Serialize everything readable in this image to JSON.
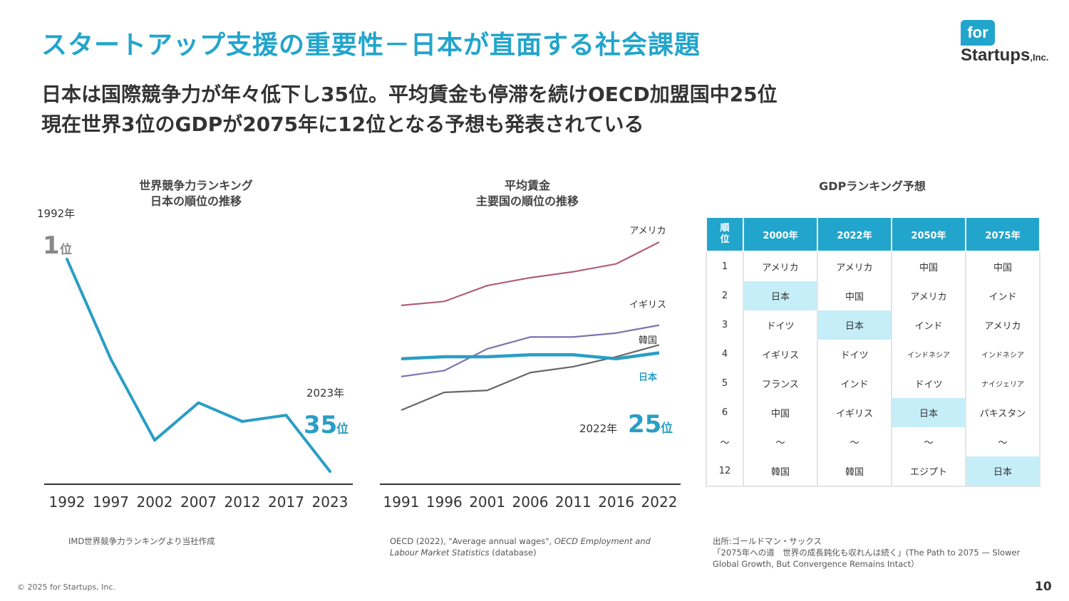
{
  "header": {
    "title": "スタートアップ支援の重要性－日本が直面する社会課題",
    "logo_top": "for",
    "logo_bottom": "Startups",
    "logo_suffix": ",Inc."
  },
  "subtitle": {
    "line1": "日本は国際競争力が年々低下し35位。平均賃金も停滞を続けOECD加盟国中25位",
    "line2": "現在世界3位のGDPが2075年に12位となる予想も発表されている"
  },
  "chart_data": [
    {
      "type": "line",
      "title_line1": "世界競争力ランキング",
      "title_line2": "日本の順位の推移",
      "x": [
        "1992",
        "1997",
        "2002",
        "2007",
        "2012",
        "2017",
        "2023"
      ],
      "series": [
        {
          "name": "",
          "values": [
            1,
            17,
            30,
            24,
            27,
            26,
            35
          ],
          "color": "#2a9ec4"
        }
      ],
      "y_inverted": true,
      "ylim": [
        1,
        35
      ],
      "annotations": {
        "start_year": "1992年",
        "start_rank": "1",
        "end_year": "2023年",
        "end_rank": "35",
        "rank_suffix": "位"
      },
      "grid": false
    },
    {
      "type": "line",
      "title_line1": "平均賃金",
      "title_line2": "主要国の順位の推移",
      "x": [
        "1991",
        "1996",
        "2001",
        "2006",
        "2011",
        "2016",
        "2022"
      ],
      "series": [
        {
          "name": "アメリカ",
          "values": [
            58,
            59,
            63,
            65,
            66.5,
            68.5,
            74
          ],
          "color": "#b05f77"
        },
        {
          "name": "イギリス",
          "values": [
            40,
            41.5,
            47,
            50,
            50,
            51,
            53
          ],
          "color": "#7e73ad"
        },
        {
          "name": "韓国",
          "values": [
            31.5,
            36,
            36.5,
            41,
            42.5,
            45,
            48
          ],
          "color": "#666666"
        },
        {
          "name": "日本",
          "values": [
            44.5,
            45,
            45,
            45.5,
            45.5,
            44.5,
            46
          ],
          "color": "#2a9ec4"
        }
      ],
      "annotations": {
        "end_year": "2022年",
        "end_rank": "25",
        "rank_suffix": "位"
      },
      "grid": false
    }
  ],
  "table": {
    "title": "GDPランキング予想",
    "headers": [
      "順位",
      "2000年",
      "2022年",
      "2050年",
      "2075年"
    ],
    "rows": [
      [
        "1",
        "アメリカ",
        "アメリカ",
        "中国",
        "中国"
      ],
      [
        "2",
        "日本",
        "中国",
        "アメリカ",
        "インド"
      ],
      [
        "3",
        "ドイツ",
        "日本",
        "インド",
        "アメリカ"
      ],
      [
        "4",
        "イギリス",
        "ドイツ",
        "インドネシア",
        "インドネシア"
      ],
      [
        "5",
        "フランス",
        "インド",
        "ドイツ",
        "ナイジェリア"
      ],
      [
        "6",
        "中国",
        "イギリス",
        "日本",
        "パキスタン"
      ],
      [
        "～",
        "～",
        "～",
        "～",
        "～"
      ],
      [
        "12",
        "韓国",
        "韓国",
        "エジプト",
        "日本"
      ]
    ],
    "highlight_color": "#c5eef8"
  },
  "sources": {
    "left": "IMD世界競争力ランキングより当社作成",
    "middle_a": "OECD (2022), \"Average annual wages\", ",
    "middle_b": "OECD Employment and Labour Market Statistics",
    "middle_c": " (database)",
    "right_1": "出所:ゴールドマン・サックス",
    "right_2": "「2075年への道　世界の成長鈍化も収れんは続く」(The Path to 2075 — Slower Global Growth, But Convergence Remains Intact）"
  },
  "footer": {
    "copyright": "© 2025 for Startups, Inc.",
    "page": "10"
  },
  "colors": {
    "accent": "#22a5cc"
  }
}
